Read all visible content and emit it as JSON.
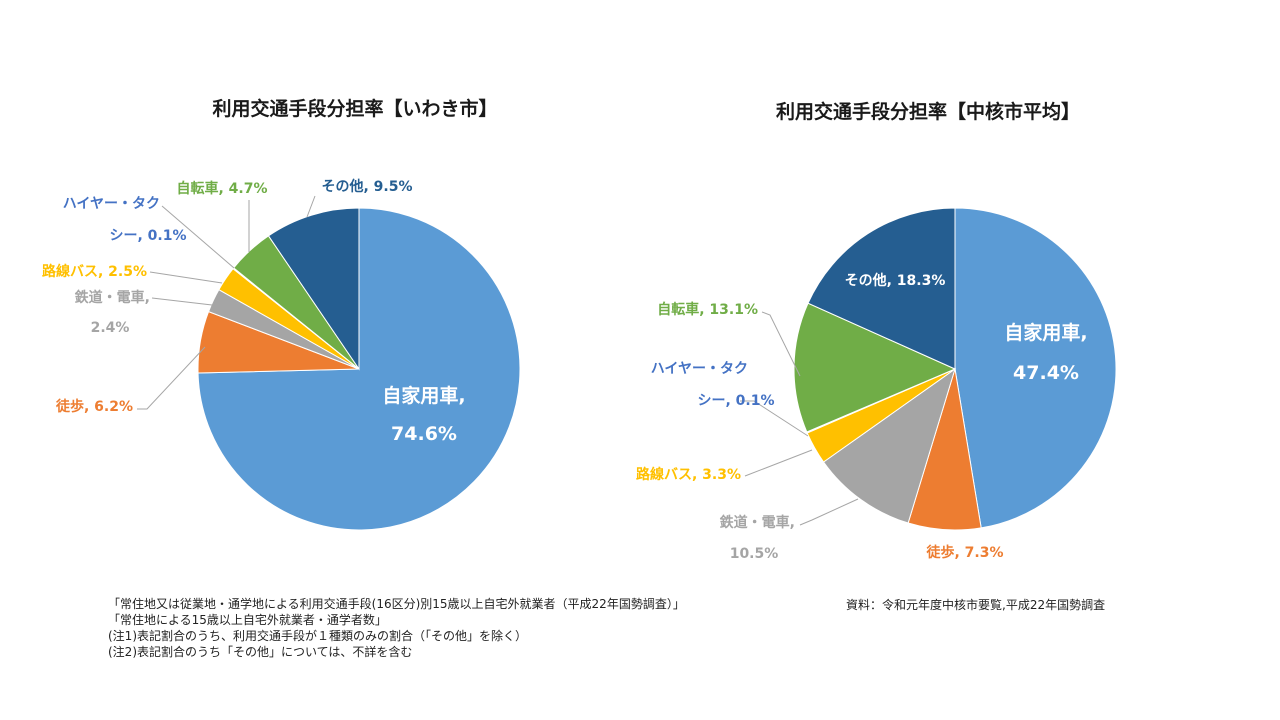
{
  "colors": {
    "blue": "#5B9BD5",
    "orange": "#ED7D31",
    "gray": "#A5A5A5",
    "yellow": "#FFC000",
    "navy": "#4472C4",
    "green": "#70AD47",
    "dark_blue": "#255E91"
  },
  "chart_data": [
    {
      "type": "pie",
      "title": "利用交通手段分担率【いわき市】",
      "start_angle": "12 o'clock, clockwise",
      "slices": [
        {
          "label_line1": "自家用車,",
          "label_line2": "74.6%",
          "value": 74.6,
          "color": "#5B9BD5"
        },
        {
          "label_line1": "徒歩, 6.2%",
          "label_line2": "",
          "value": 6.2,
          "color": "#ED7D31"
        },
        {
          "label_line1": "鉄道・電車,",
          "label_line2": "2.4%",
          "value": 2.4,
          "color": "#A5A5A5"
        },
        {
          "label_line1": "路線バス, 2.5%",
          "label_line2": "",
          "value": 2.5,
          "color": "#FFC000"
        },
        {
          "label_line1": "ハイヤー・タク",
          "label_line2": "シー, 0.1%",
          "value": 0.1,
          "color": "#4472C4"
        },
        {
          "label_line1": "自転車, 4.7%",
          "label_line2": "",
          "value": 4.7,
          "color": "#70AD47"
        },
        {
          "label_line1": "その他, 9.5%",
          "label_line2": "",
          "value": 9.5,
          "color": "#255E91"
        }
      ]
    },
    {
      "type": "pie",
      "title": "利用交通手段分担率【中核市平均】",
      "start_angle": "12 o'clock, clockwise",
      "slices": [
        {
          "label_line1": "自家用車,",
          "label_line2": "47.4%",
          "value": 47.4,
          "color": "#5B9BD5"
        },
        {
          "label_line1": "徒歩, 7.3%",
          "label_line2": "",
          "value": 7.3,
          "color": "#ED7D31"
        },
        {
          "label_line1": "鉄道・電車,",
          "label_line2": "10.5%",
          "value": 10.5,
          "color": "#A5A5A5"
        },
        {
          "label_line1": "路線バス, 3.3%",
          "label_line2": "",
          "value": 3.3,
          "color": "#FFC000"
        },
        {
          "label_line1": "ハイヤー・タク",
          "label_line2": "シー, 0.1%",
          "value": 0.1,
          "color": "#4472C4"
        },
        {
          "label_line1": "自転車, 13.1%",
          "label_line2": "",
          "value": 13.1,
          "color": "#70AD47"
        },
        {
          "label_line1": "その他, 18.3%",
          "label_line2": "",
          "value": 18.3,
          "color": "#255E91"
        }
      ]
    }
  ],
  "footnotes": {
    "line1": "「常住地又は従業地・通学地による利用交通手段(16区分)別15歳以上自宅外就業者（平成22年国勢調査）」",
    "line2": "「常住地による15歳以上自宅外就業者・通学者数」",
    "line3": "(注1)表記割合のうち、利用交通手段が１種類のみの割合（「その他」を除く）",
    "line4": "(注2)表記割合のうち「その他」については、不詳を含む"
  },
  "source": "資料：令和元年度中核市要覧,平成22年国勢調査"
}
